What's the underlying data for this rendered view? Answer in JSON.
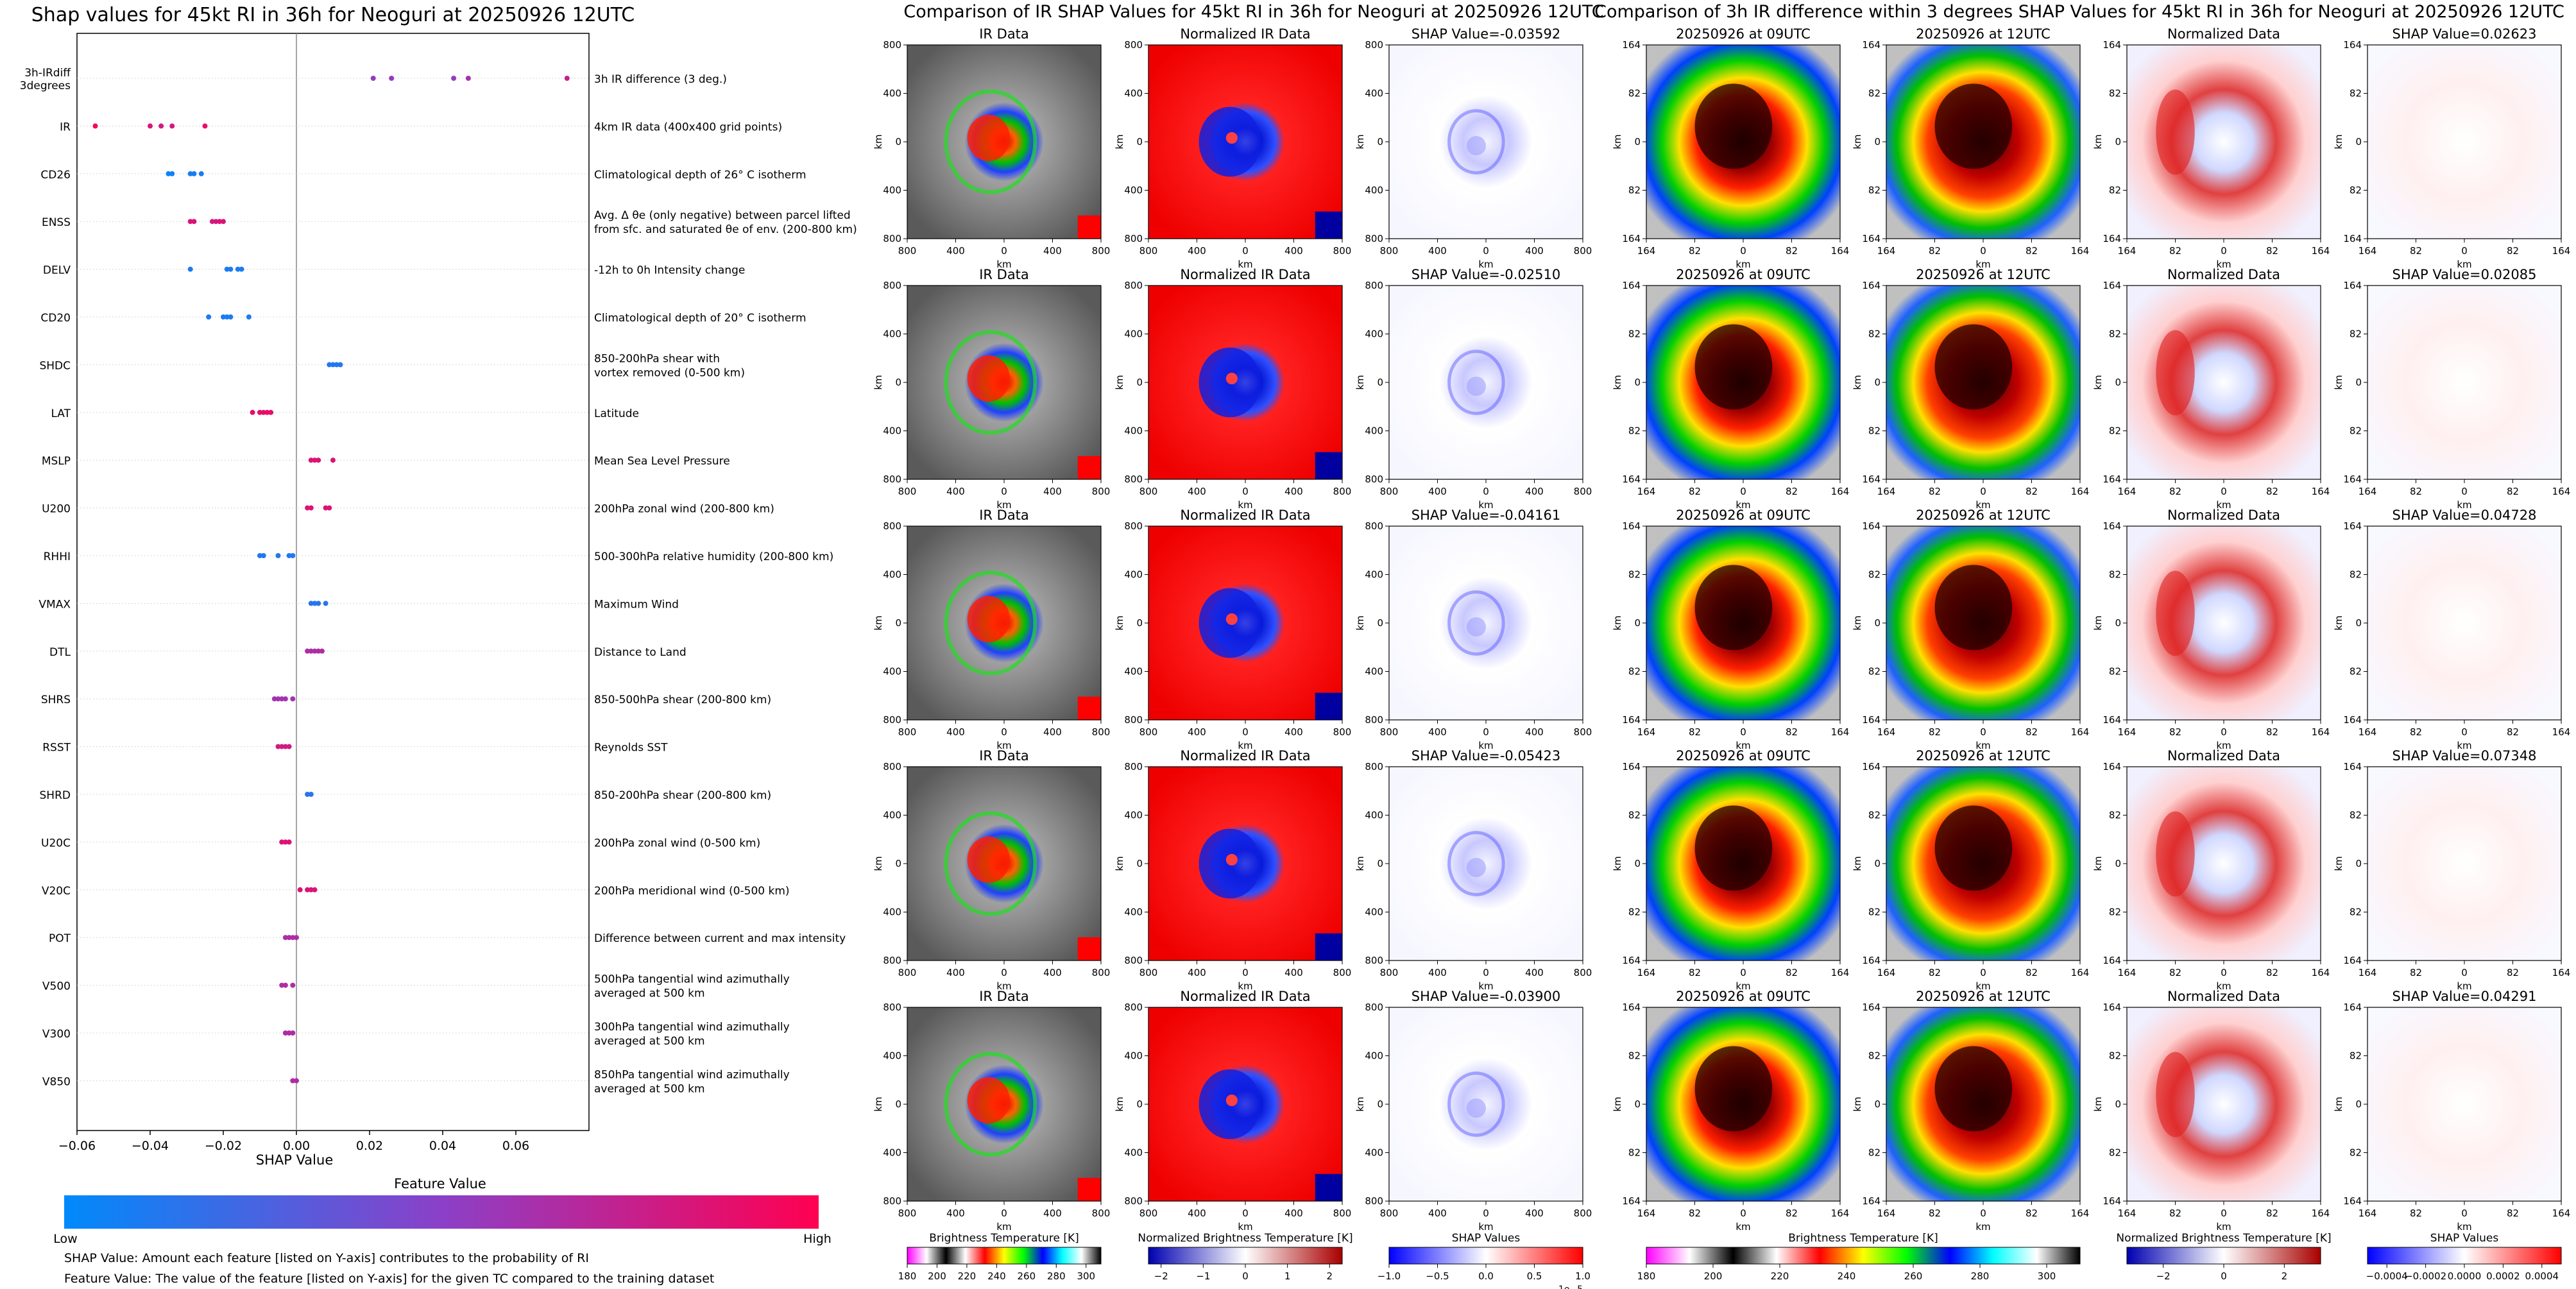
{
  "chart_data": [
    {
      "type": "scatter",
      "title": "Shap values for 45kt RI in 36h for Neoguri at 20250926 12UTC",
      "xlabel": "SHAP Value",
      "xlim": [
        -0.06,
        0.08
      ],
      "xticks": [
        "−0.06",
        "−0.04",
        "−0.02",
        "0.00",
        "0.02",
        "0.04",
        "0.06"
      ],
      "grid": false,
      "features": [
        {
          "name": "3h-IRdiff\n3degrees",
          "desc": "3h IR difference (3 deg.)",
          "points": [
            [
              0.021,
              0.55
            ],
            [
              0.026,
              0.55
            ],
            [
              0.043,
              0.55
            ],
            [
              0.047,
              0.6
            ],
            [
              0.074,
              0.75
            ]
          ]
        },
        {
          "name": "IR",
          "desc": "4km IR data (400x400 grid points)",
          "points": [
            [
              -0.055,
              0.95
            ],
            [
              -0.04,
              0.85
            ],
            [
              -0.037,
              0.8
            ],
            [
              -0.034,
              0.8
            ],
            [
              -0.025,
              0.9
            ]
          ]
        },
        {
          "name": "CD26",
          "desc": "Climatological depth of 26° C isotherm",
          "points": [
            [
              -0.035,
              0.05
            ],
            [
              -0.034,
              0.05
            ],
            [
              -0.029,
              0.08
            ],
            [
              -0.028,
              0.08
            ],
            [
              -0.026,
              0.1
            ]
          ]
        },
        {
          "name": "ENSS",
          "desc": "Avg. Δ θe (only negative) between parcel lifted\nfrom sfc. and saturated θe of env. (200-800 km)",
          "points": [
            [
              -0.029,
              0.85
            ],
            [
              -0.028,
              0.85
            ],
            [
              -0.023,
              0.8
            ],
            [
              -0.022,
              0.8
            ],
            [
              -0.021,
              0.85
            ],
            [
              -0.02,
              0.85
            ]
          ]
        },
        {
          "name": "DELV",
          "desc": "-12h to 0h Intensity change",
          "points": [
            [
              -0.029,
              0.1
            ],
            [
              -0.019,
              0.1
            ],
            [
              -0.018,
              0.1
            ],
            [
              -0.016,
              0.1
            ],
            [
              -0.015,
              0.1
            ]
          ]
        },
        {
          "name": "CD20",
          "desc": "Climatological depth of 20° C isotherm",
          "points": [
            [
              -0.024,
              0.1
            ],
            [
              -0.02,
              0.1
            ],
            [
              -0.019,
              0.1
            ],
            [
              -0.018,
              0.1
            ],
            [
              -0.013,
              0.1
            ]
          ]
        },
        {
          "name": "SHDC",
          "desc": "850-200hPa shear with\nvortex removed (0-500 km)",
          "points": [
            [
              0.009,
              0.12
            ],
            [
              0.01,
              0.12
            ],
            [
              0.011,
              0.12
            ],
            [
              0.012,
              0.12
            ]
          ]
        },
        {
          "name": "LAT",
          "desc": "Latitude",
          "points": [
            [
              -0.012,
              0.9
            ],
            [
              -0.01,
              0.9
            ],
            [
              -0.009,
              0.9
            ],
            [
              -0.008,
              0.9
            ],
            [
              -0.007,
              0.9
            ]
          ]
        },
        {
          "name": "MSLP",
          "desc": "Mean Sea Level Pressure",
          "points": [
            [
              0.004,
              0.85
            ],
            [
              0.005,
              0.85
            ],
            [
              0.006,
              0.85
            ],
            [
              0.01,
              0.85
            ]
          ]
        },
        {
          "name": "U200",
          "desc": "200hPa zonal wind (200-800 km)",
          "points": [
            [
              0.003,
              0.85
            ],
            [
              0.004,
              0.85
            ],
            [
              0.008,
              0.85
            ],
            [
              0.009,
              0.85
            ]
          ]
        },
        {
          "name": "RHHI",
          "desc": "500-300hPa relative humidity (200-800 km)",
          "points": [
            [
              -0.01,
              0.12
            ],
            [
              -0.009,
              0.12
            ],
            [
              -0.005,
              0.12
            ],
            [
              -0.002,
              0.12
            ],
            [
              -0.001,
              0.12
            ]
          ]
        },
        {
          "name": "VMAX",
          "desc": "Maximum Wind",
          "points": [
            [
              0.004,
              0.15
            ],
            [
              0.005,
              0.15
            ],
            [
              0.006,
              0.15
            ],
            [
              0.008,
              0.15
            ]
          ]
        },
        {
          "name": "DTL",
          "desc": "Distance to Land",
          "points": [
            [
              0.003,
              0.65
            ],
            [
              0.004,
              0.65
            ],
            [
              0.005,
              0.65
            ],
            [
              0.006,
              0.65
            ],
            [
              0.007,
              0.65
            ]
          ]
        },
        {
          "name": "SHRS",
          "desc": "850-500hPa shear (200-800 km)",
          "points": [
            [
              -0.006,
              0.6
            ],
            [
              -0.005,
              0.6
            ],
            [
              -0.004,
              0.6
            ],
            [
              -0.003,
              0.6
            ],
            [
              -0.001,
              0.6
            ]
          ]
        },
        {
          "name": "RSST",
          "desc": "Reynolds SST",
          "points": [
            [
              -0.005,
              0.8
            ],
            [
              -0.004,
              0.8
            ],
            [
              -0.003,
              0.8
            ],
            [
              -0.002,
              0.8
            ]
          ]
        },
        {
          "name": "SHRD",
          "desc": "850-200hPa shear (200-800 km)",
          "points": [
            [
              0.003,
              0.15
            ],
            [
              0.004,
              0.15
            ]
          ]
        },
        {
          "name": "U20C",
          "desc": "200hPa zonal wind (0-500 km)",
          "points": [
            [
              -0.004,
              0.85
            ],
            [
              -0.003,
              0.85
            ],
            [
              -0.002,
              0.85
            ]
          ]
        },
        {
          "name": "V20C",
          "desc": "200hPa meridional wind (0-500 km)",
          "points": [
            [
              0.001,
              0.85
            ],
            [
              0.003,
              0.85
            ],
            [
              0.004,
              0.85
            ],
            [
              0.005,
              0.85
            ]
          ]
        },
        {
          "name": "POT",
          "desc": "Difference between current and max intensity",
          "points": [
            [
              -0.003,
              0.65
            ],
            [
              -0.002,
              0.65
            ],
            [
              -0.001,
              0.65
            ],
            [
              0.0,
              0.65
            ]
          ]
        },
        {
          "name": "V500",
          "desc": "500hPa tangential wind azimuthally\naveraged at 500 km",
          "points": [
            [
              -0.004,
              0.65
            ],
            [
              -0.003,
              0.65
            ],
            [
              -0.001,
              0.65
            ]
          ]
        },
        {
          "name": "V300",
          "desc": "300hPa tangential wind azimuthally\naveraged at 500 km",
          "points": [
            [
              -0.003,
              0.65
            ],
            [
              -0.002,
              0.65
            ],
            [
              -0.001,
              0.65
            ]
          ]
        },
        {
          "name": "V850",
          "desc": "850hPa tangential wind azimuthally\naveraged at 500 km",
          "points": [
            [
              -0.001,
              0.65
            ],
            [
              0.0,
              0.65
            ]
          ]
        }
      ],
      "colorbar": {
        "label": "Feature Value",
        "low": "Low",
        "high": "High",
        "colors": [
          "#008afb",
          "#8b40c8",
          "#ff0051"
        ]
      }
    },
    {
      "type": "heatmap",
      "title": "Comparison of IR SHAP Values for 45kt RI in 36h for Neoguri at 20250926 12UTC",
      "columns": [
        "IR Data",
        "Normalized IR Data"
      ],
      "shap_titles": [
        "SHAP Value=-0.03592",
        "SHAP Value=-0.02510",
        "SHAP Value=-0.04161",
        "SHAP Value=-0.05423",
        "SHAP Value=-0.03900"
      ],
      "axis_label": "km",
      "xticks": [
        "800",
        "400",
        "0",
        "400",
        "800"
      ],
      "yticks": [
        "800",
        "400",
        "0",
        "400",
        "800"
      ],
      "colorbars": [
        {
          "label": "Brightness Temperature [K]",
          "ticks": [
            "180",
            "200",
            "220",
            "240",
            "260",
            "280",
            "300"
          ],
          "range": [
            180,
            310
          ]
        },
        {
          "label": "Normalized Brightness Temperature [K]",
          "ticks": [
            "−2",
            "−1",
            "0",
            "1",
            "2"
          ],
          "range": [
            -2.3,
            2.3
          ]
        },
        {
          "label": "SHAP Values",
          "ticks": [
            "−1.0",
            "−0.5",
            "0.0",
            "0.5",
            "1.0"
          ],
          "range": [
            -1,
            1
          ],
          "exponent": "1e−5"
        }
      ]
    },
    {
      "type": "heatmap",
      "title": "Comparison of 3h IR difference within 3 degrees SHAP Values for 45kt RI in 36h for Neoguri at 20250926 12UTC",
      "columns": [
        "20250926 at 09UTC",
        "20250926 at 12UTC",
        "Normalized Data"
      ],
      "shap_titles": [
        "SHAP Value=0.02623",
        "SHAP Value=0.02085",
        "SHAP Value=0.04728",
        "SHAP Value=0.07348",
        "SHAP Value=0.04291"
      ],
      "axis_label": "km",
      "xticks": [
        "164",
        "82",
        "0",
        "82",
        "164"
      ],
      "yticks": [
        "164",
        "82",
        "0",
        "82",
        "164"
      ],
      "colorbars": [
        {
          "label": "Brightness Temperature [K]",
          "ticks": [
            "180",
            "200",
            "220",
            "240",
            "260",
            "280",
            "300"
          ],
          "range": [
            180,
            310
          ]
        },
        {
          "label": "Normalized Brightness Temperature [K]",
          "ticks": [
            "−2",
            "0",
            "2"
          ],
          "range": [
            -3.2,
            3.2
          ]
        },
        {
          "label": "SHAP Values",
          "ticks": [
            "−0.0004",
            "−0.0002",
            "0.0000",
            "0.0002",
            "0.0004"
          ],
          "range": [
            -0.0005,
            0.0005
          ]
        }
      ]
    }
  ],
  "notes": [
    "SHAP Value: Amount each feature [listed on Y-axis] contributes to the probability of RI",
    "Feature Value: The value of the feature [listed on Y-axis] for the given TC compared to the training dataset"
  ],
  "colors": {
    "ir_ramp": [
      "#ff00ff",
      "#000000",
      "#ffffff",
      "#ff0000",
      "#ffff00",
      "#00ff00",
      "#0000ff",
      "#00ffff",
      "#ffffff",
      "#000000"
    ],
    "rdbu": [
      "#0000b0",
      "#ffffff",
      "#a80000"
    ],
    "bwr": [
      "#0000ff",
      "#ffffff",
      "#ff0000"
    ]
  }
}
